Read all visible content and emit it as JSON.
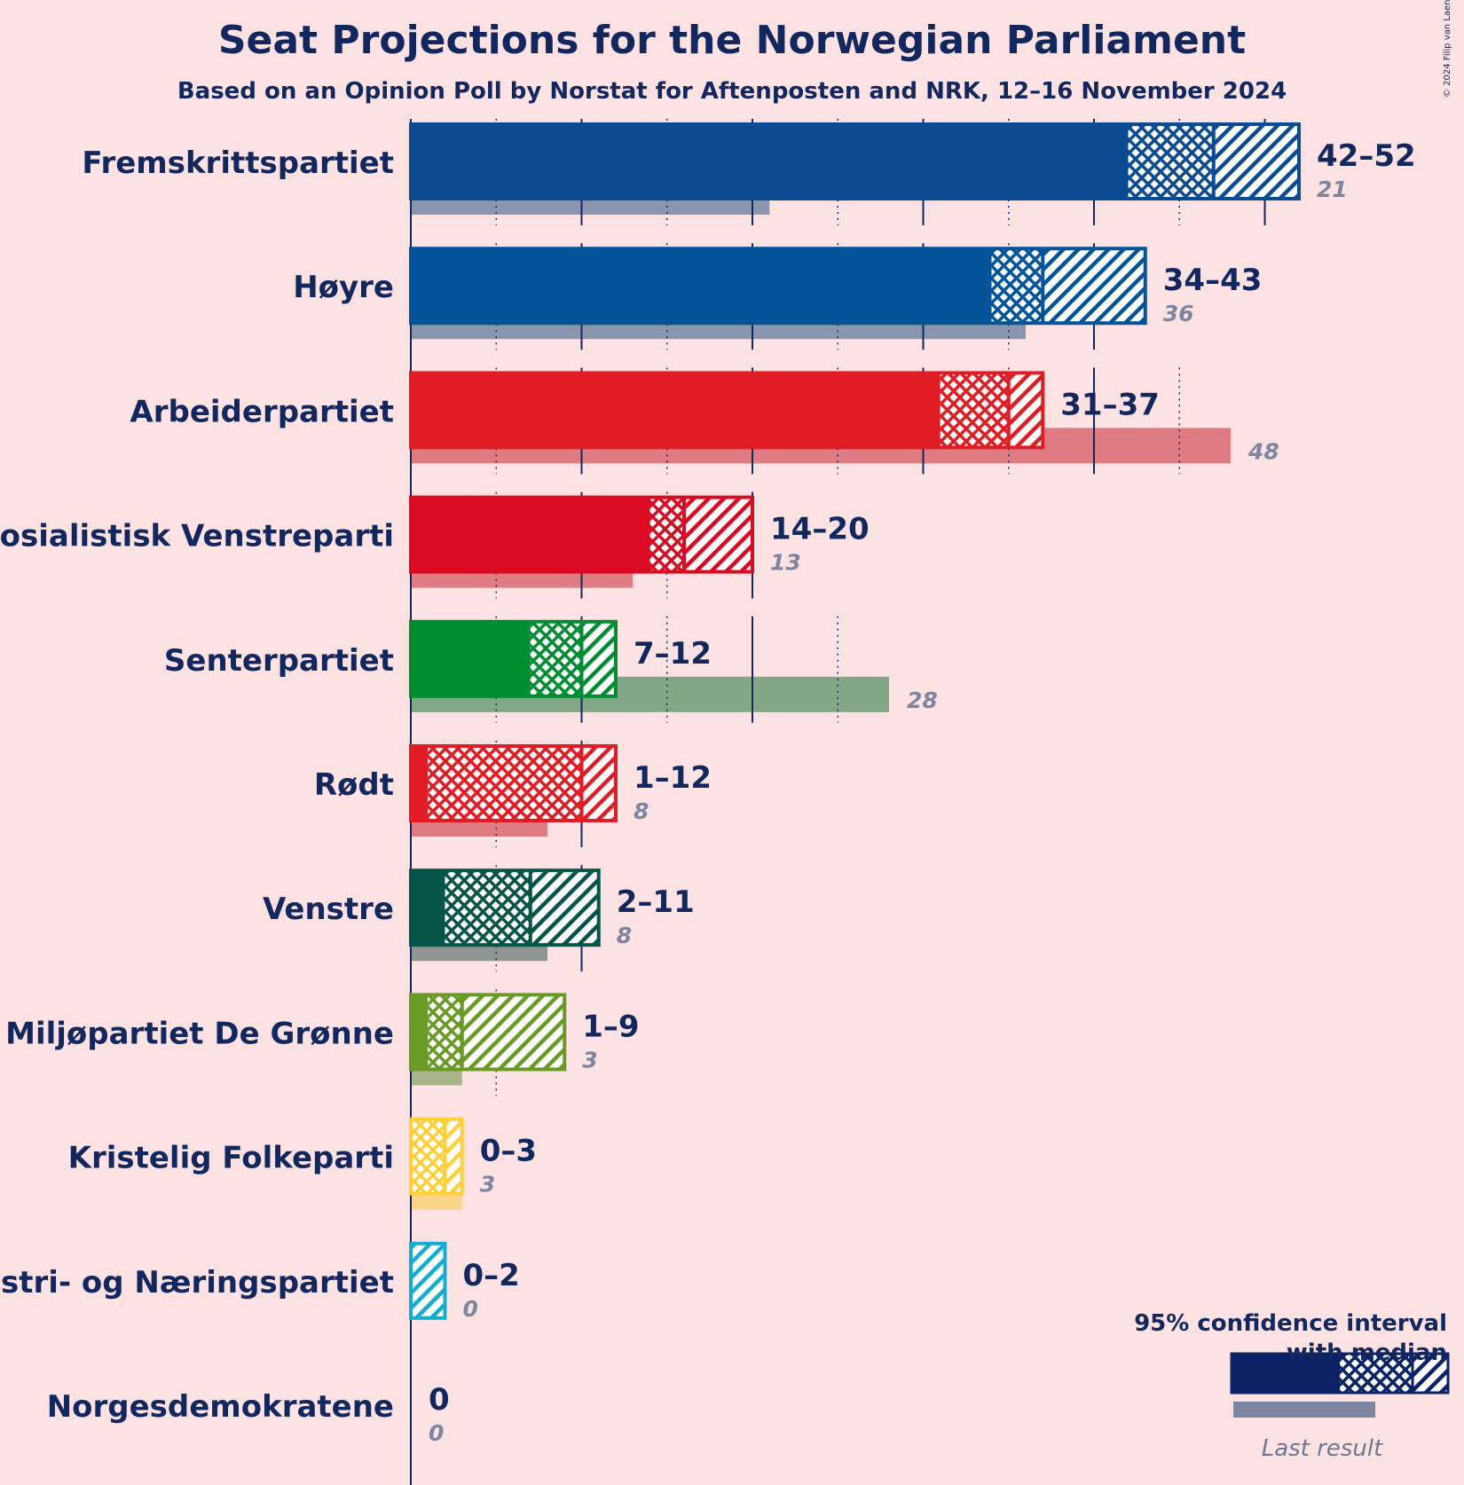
{
  "title": "Seat Projections for the Norwegian Parliament",
  "subtitle": "Based on an Opinion Poll by Norstat for Aftenposten and NRK, 12–16 November 2024",
  "copyright": "© 2024 Filip van Laenen",
  "legend": {
    "title_line1": "95% confidence interval",
    "title_line2": "with median",
    "last_result_label": "Last result",
    "color": "#0b2266"
  },
  "chart_data": {
    "type": "bar",
    "orientation": "horizontal",
    "x_max_gridline": 50,
    "grid": "solid every 10 seats, dotted every 5 seats",
    "parties": [
      {
        "name": "Fremskrittspartiet",
        "low": 42,
        "median": 47,
        "high": 52,
        "label": "42–52",
        "last": 21,
        "last_label": "21",
        "color": "#0a4b91",
        "last_color": "#8a96ae"
      },
      {
        "name": "Høyre",
        "low": 34,
        "median": 37,
        "high": 43,
        "label": "34–43",
        "last": 36,
        "last_label": "36",
        "color": "#025397",
        "last_color": "#8a96ae"
      },
      {
        "name": "Arbeiderpartiet",
        "low": 31,
        "median": 35,
        "high": 37,
        "label": "31–37",
        "last": 48,
        "last_label": "48",
        "color": "#e01c24",
        "last_color": "#df7c83"
      },
      {
        "name": "Sosialistisk Venstreparti",
        "low": 14,
        "median": 16,
        "high": 20,
        "label": "14–20",
        "last": 13,
        "last_label": "13",
        "color": "#db0a22",
        "last_color": "#df7c83"
      },
      {
        "name": "Senterpartiet",
        "low": 7,
        "median": 10,
        "high": 12,
        "label": "7–12",
        "last": 28,
        "last_label": "28",
        "color": "#008c30",
        "last_color": "#83a686"
      },
      {
        "name": "Rødt",
        "low": 1,
        "median": 10,
        "high": 12,
        "label": "1–12",
        "last": 8,
        "last_label": "8",
        "color": "#e21b24",
        "last_color": "#df7c83"
      },
      {
        "name": "Venstre",
        "low": 2,
        "median": 7,
        "high": 11,
        "label": "2–11",
        "last": 8,
        "last_label": "8",
        "color": "#045447",
        "last_color": "#8e9593"
      },
      {
        "name": "Miljøpartiet De Grønne",
        "low": 1,
        "median": 3,
        "high": 9,
        "label": "1–9",
        "last": 3,
        "last_label": "3",
        "color": "#6a9a26",
        "last_color": "#a9b389"
      },
      {
        "name": "Kristelig Folkeparti",
        "low": 0,
        "median": 2,
        "high": 3,
        "label": "0–3",
        "last": 3,
        "last_label": "3",
        "color": "#fecf38",
        "last_color": "#f8d58b"
      },
      {
        "name": "Industri- og Næringspartiet",
        "low": 0,
        "median": 0,
        "high": 2,
        "label": "0–2",
        "last": 0,
        "last_label": "0",
        "color": "#13aecd",
        "last_color": "#8a96ae"
      },
      {
        "name": "Norgesdemokratene",
        "low": 0,
        "median": 0,
        "high": 0,
        "label": "0",
        "last": 0,
        "last_label": "0",
        "color": "#12275e",
        "last_color": "#8a96ae"
      }
    ]
  }
}
